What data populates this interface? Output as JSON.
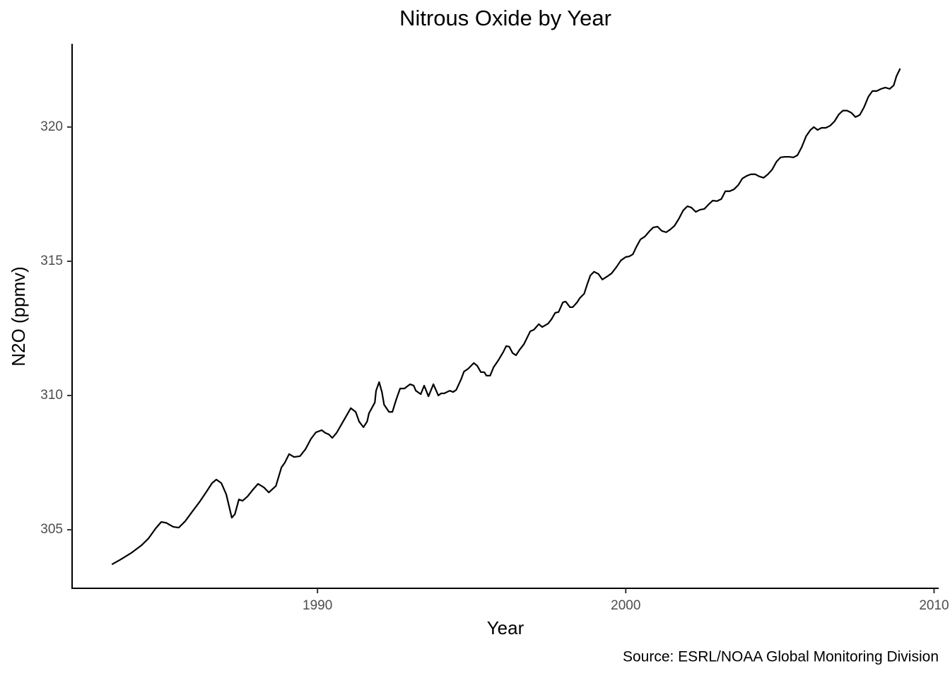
{
  "chart_data": {
    "type": "line",
    "title": "Nitrous Oxide by Year",
    "x_label": "Year",
    "y_label": "N2O (ppmv)",
    "caption": "Source: ESRL/NOAA Global Monitoring Division",
    "color": "#000000",
    "grid": false,
    "xlim": [
      1982.04,
      2010.15
    ],
    "ylim": [
      302.82,
      323.1
    ],
    "xticks": [
      1990,
      2000,
      2010
    ],
    "yticks": [
      305,
      310,
      315,
      320
    ],
    "x": [
      1983.33,
      1983.61,
      1983.95,
      1984.29,
      1984.52,
      1984.75,
      1984.93,
      1985.09,
      1985.32,
      1985.5,
      1985.71,
      1985.94,
      1986.17,
      1986.4,
      1986.58,
      1986.72,
      1986.88,
      1987.04,
      1987.22,
      1987.32,
      1987.45,
      1987.57,
      1987.73,
      1987.91,
      1988.07,
      1988.26,
      1988.42,
      1988.65,
      1988.83,
      1988.94,
      1989.08,
      1989.24,
      1989.43,
      1989.61,
      1989.79,
      1989.95,
      1990.14,
      1990.25,
      1990.37,
      1990.48,
      1990.62,
      1990.8,
      1990.96,
      1991.08,
      1991.24,
      1991.35,
      1991.49,
      1991.61,
      1991.67,
      1991.86,
      1991.9,
      1992.0,
      1992.09,
      1992.16,
      1992.32,
      1992.43,
      1992.55,
      1992.68,
      1992.82,
      1993.0,
      1993.12,
      1993.19,
      1993.35,
      1993.46,
      1993.6,
      1993.76,
      1993.92,
      1994.01,
      1994.11,
      1994.29,
      1994.4,
      1994.5,
      1994.66,
      1994.75,
      1994.89,
      1995.07,
      1995.18,
      1995.3,
      1995.41,
      1995.48,
      1995.6,
      1995.71,
      1995.87,
      1996.03,
      1996.12,
      1996.22,
      1996.33,
      1996.44,
      1996.56,
      1996.7,
      1996.9,
      1997.02,
      1997.18,
      1997.29,
      1997.48,
      1997.59,
      1997.71,
      1997.82,
      1997.96,
      1998.05,
      1998.19,
      1998.28,
      1998.42,
      1998.51,
      1998.65,
      1998.74,
      1998.85,
      1998.97,
      1999.11,
      1999.24,
      1999.38,
      1999.54,
      1999.7,
      1999.84,
      2000.0,
      2000.11,
      2000.23,
      2000.34,
      2000.48,
      2000.62,
      2000.76,
      2000.89,
      2001.03,
      2001.17,
      2001.31,
      2001.44,
      2001.58,
      2001.72,
      2001.86,
      2002.0,
      2002.13,
      2002.27,
      2002.41,
      2002.55,
      2002.68,
      2002.82,
      2002.96,
      2003.1,
      2003.23,
      2003.37,
      2003.51,
      2003.65,
      2003.78,
      2003.92,
      2004.06,
      2004.2,
      2004.33,
      2004.47,
      2004.61,
      2004.75,
      2004.89,
      2005.02,
      2005.16,
      2005.3,
      2005.44,
      2005.57,
      2005.71,
      2005.85,
      2005.99,
      2006.1,
      2006.22,
      2006.35,
      2006.49,
      2006.63,
      2006.77,
      2006.91,
      2007.04,
      2007.18,
      2007.32,
      2007.45,
      2007.59,
      2007.73,
      2007.87,
      2008.0,
      2008.14,
      2008.28,
      2008.42,
      2008.56,
      2008.69,
      2008.78,
      2008.9
    ],
    "values": [
      303.71,
      303.89,
      304.13,
      304.42,
      304.68,
      305.05,
      305.29,
      305.26,
      305.11,
      305.08,
      305.32,
      305.68,
      306.03,
      306.42,
      306.74,
      306.87,
      306.74,
      306.32,
      305.45,
      305.58,
      306.13,
      306.08,
      306.24,
      306.5,
      306.71,
      306.58,
      306.39,
      306.63,
      307.32,
      307.5,
      307.82,
      307.71,
      307.74,
      308.0,
      308.39,
      308.63,
      308.71,
      308.61,
      308.55,
      308.42,
      308.61,
      308.97,
      309.29,
      309.53,
      309.39,
      309.03,
      308.82,
      309.03,
      309.34,
      309.74,
      310.18,
      310.5,
      310.13,
      309.66,
      309.39,
      309.39,
      309.84,
      310.26,
      310.26,
      310.42,
      310.37,
      310.18,
      310.05,
      310.37,
      309.97,
      310.42,
      310.0,
      310.08,
      310.08,
      310.18,
      310.13,
      310.21,
      310.61,
      310.89,
      311.0,
      311.21,
      311.11,
      310.87,
      310.87,
      310.74,
      310.74,
      311.05,
      311.32,
      311.63,
      311.84,
      311.82,
      311.58,
      311.5,
      311.71,
      311.92,
      312.39,
      312.45,
      312.66,
      312.55,
      312.68,
      312.84,
      313.08,
      313.11,
      313.47,
      313.5,
      313.29,
      313.29,
      313.47,
      313.63,
      313.79,
      314.11,
      314.47,
      314.61,
      314.53,
      314.32,
      314.42,
      314.55,
      314.79,
      315.03,
      315.16,
      315.18,
      315.26,
      315.53,
      315.82,
      315.92,
      316.11,
      316.26,
      316.29,
      316.13,
      316.08,
      316.18,
      316.32,
      316.58,
      316.89,
      317.05,
      317.0,
      316.84,
      316.92,
      316.95,
      317.11,
      317.26,
      317.24,
      317.32,
      317.61,
      317.61,
      317.68,
      317.84,
      318.08,
      318.18,
      318.24,
      318.24,
      318.16,
      318.11,
      318.24,
      318.42,
      318.71,
      318.87,
      318.89,
      318.89,
      318.87,
      318.95,
      319.26,
      319.66,
      319.89,
      320.0,
      319.89,
      319.97,
      319.97,
      320.05,
      320.21,
      320.47,
      320.61,
      320.61,
      320.53,
      320.37,
      320.45,
      320.74,
      321.13,
      321.34,
      321.34,
      321.42,
      321.47,
      321.42,
      321.55,
      321.89,
      322.18
    ]
  }
}
